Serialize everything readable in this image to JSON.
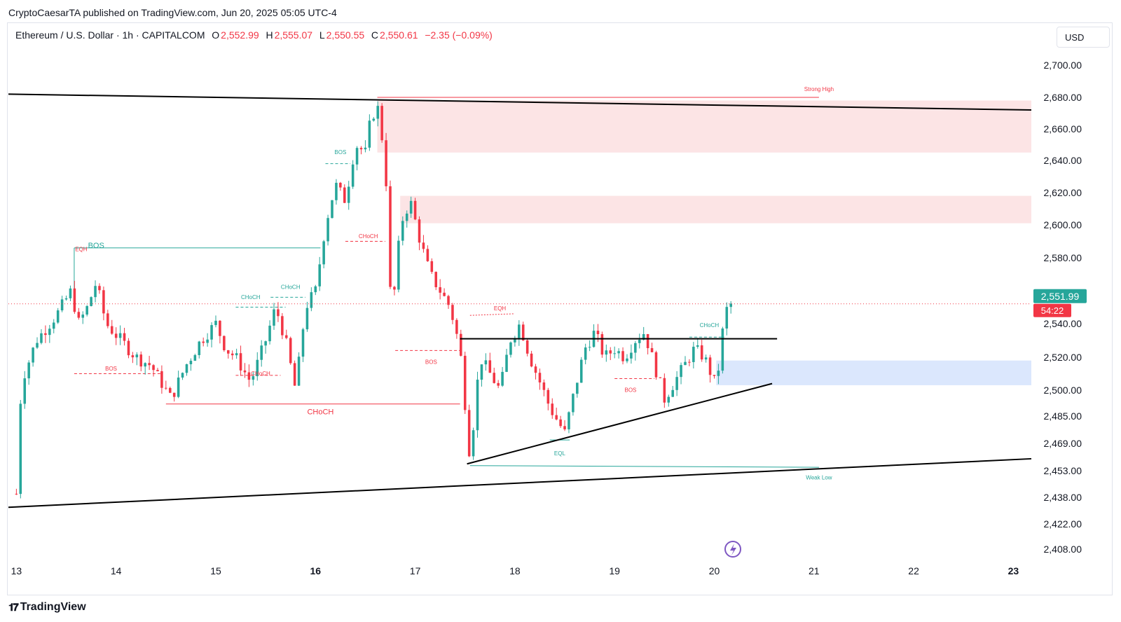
{
  "publisher_line": "CryptoCaesarTA published on TradingView.com, Jun 20, 2025 05:05 UTC-4",
  "symbol": {
    "name": "Ethereum / U.S. Dollar · 1h · CAPITALCOM",
    "o_label": "O",
    "o_value": "2,552.99",
    "h_label": "H",
    "h_value": "2,555.07",
    "l_label": "L",
    "l_value": "2,550.55",
    "c_label": "C",
    "c_value": "2,550.61",
    "change": "−2.35 (−0.09%)"
  },
  "currency": "USD",
  "branding": {
    "logo_text": "TradingView",
    "logo_icon": "tradingview-logo-icon"
  },
  "colors": {
    "bull": "#26a69a",
    "bear": "#f23645",
    "supply_zone": "#fce4e5",
    "demand_zone": "#dbe7fd",
    "trendline": "#000000"
  },
  "chart_data": {
    "type": "candlestick",
    "ylim": [
      2400,
      2712
    ],
    "x_ticks": [
      "13",
      "14",
      "15",
      "16",
      "17",
      "18",
      "19",
      "20",
      "21",
      "22",
      "23"
    ],
    "y_ticks": [
      "2,700.00",
      "2,680.00",
      "2,660.00",
      "2,640.00",
      "2,620.00",
      "2,600.00",
      "2,580.00",
      "2,540.00",
      "2,520.00",
      "2,500.00",
      "2,485.00",
      "2,469.00",
      "2,453.00",
      "2,438.00",
      "2,422.00",
      "2,408.00"
    ],
    "current_price": "2,551.99",
    "countdown": "54:22",
    "price_path": [
      [
        13.0,
        2440
      ],
      [
        13.05,
        2505
      ],
      [
        13.2,
        2530
      ],
      [
        13.4,
        2545
      ],
      [
        13.55,
        2560
      ],
      [
        13.62,
        2540
      ],
      [
        13.7,
        2548
      ],
      [
        13.8,
        2565
      ],
      [
        13.9,
        2540
      ],
      [
        14.05,
        2530
      ],
      [
        14.2,
        2520
      ],
      [
        14.35,
        2515
      ],
      [
        14.45,
        2505
      ],
      [
        14.55,
        2495
      ],
      [
        14.7,
        2515
      ],
      [
        14.85,
        2530
      ],
      [
        15.0,
        2540
      ],
      [
        15.1,
        2525
      ],
      [
        15.2,
        2520
      ],
      [
        15.35,
        2505
      ],
      [
        15.5,
        2530
      ],
      [
        15.6,
        2550
      ],
      [
        15.7,
        2530
      ],
      [
        15.8,
        2500
      ],
      [
        15.9,
        2550
      ],
      [
        16.0,
        2560
      ],
      [
        16.1,
        2600
      ],
      [
        16.2,
        2625
      ],
      [
        16.3,
        2615
      ],
      [
        16.4,
        2650
      ],
      [
        16.5,
        2645
      ],
      [
        16.55,
        2665
      ],
      [
        16.62,
        2675
      ],
      [
        16.7,
        2640
      ],
      [
        16.75,
        2560
      ],
      [
        16.8,
        2560
      ],
      [
        16.85,
        2600
      ],
      [
        16.95,
        2615
      ],
      [
        17.05,
        2590
      ],
      [
        17.15,
        2570
      ],
      [
        17.25,
        2560
      ],
      [
        17.35,
        2550
      ],
      [
        17.45,
        2525
      ],
      [
        17.55,
        2460
      ],
      [
        17.65,
        2520
      ],
      [
        17.75,
        2510
      ],
      [
        17.85,
        2500
      ],
      [
        17.95,
        2530
      ],
      [
        18.05,
        2540
      ],
      [
        18.15,
        2520
      ],
      [
        18.25,
        2505
      ],
      [
        18.35,
        2490
      ],
      [
        18.5,
        2475
      ],
      [
        18.6,
        2500
      ],
      [
        18.7,
        2525
      ],
      [
        18.8,
        2535
      ],
      [
        18.9,
        2520
      ],
      [
        19.0,
        2525
      ],
      [
        19.1,
        2520
      ],
      [
        19.2,
        2530
      ],
      [
        19.3,
        2535
      ],
      [
        19.4,
        2515
      ],
      [
        19.5,
        2495
      ],
      [
        19.6,
        2505
      ],
      [
        19.7,
        2515
      ],
      [
        19.8,
        2525
      ],
      [
        19.9,
        2520
      ],
      [
        20.0,
        2505
      ],
      [
        20.05,
        2515
      ],
      [
        20.1,
        2545
      ],
      [
        20.15,
        2552
      ],
      [
        20.2,
        2551
      ]
    ],
    "supply_zones": [
      {
        "from": 16.62,
        "top": 2678,
        "bottom": 2645
      },
      {
        "from": 16.85,
        "top": 2618,
        "bottom": 2601
      }
    ],
    "demand_zone": {
      "from": 20.02,
      "top": 2518,
      "bottom": 2503
    },
    "trendlines": [
      {
        "name": "upper-channel",
        "x1": 12.92,
        "y1": 2682,
        "x2": 23.18,
        "y2": 2672
      },
      {
        "name": "lower-channel",
        "x1": 12.92,
        "y1": 2432,
        "x2": 23.18,
        "y2": 2460
      },
      {
        "name": "ascending-support",
        "x1": 17.52,
        "y1": 2457,
        "x2": 20.58,
        "y2": 2504
      },
      {
        "name": "range-high",
        "x1": 17.45,
        "y1": 2531,
        "x2": 20.63,
        "y2": 2531
      }
    ],
    "annotations": [
      {
        "text": "BOS",
        "x": 13.8,
        "y": 2586,
        "color": "#26a69a",
        "size": 11
      },
      {
        "text": "EQH",
        "x": 13.65,
        "y": 2584,
        "color": "#f23645",
        "size": 8
      },
      {
        "text": "BOS",
        "x": 13.95,
        "y": 2512,
        "color": "#f23645",
        "size": 8
      },
      {
        "text": "CHoCH",
        "x": 15.35,
        "y": 2555,
        "color": "#26a69a",
        "size": 8
      },
      {
        "text": "CHoCH",
        "x": 15.75,
        "y": 2561,
        "color": "#26a69a",
        "size": 8
      },
      {
        "text": "CHoCH",
        "x": 15.45,
        "y": 2509,
        "color": "#f23645",
        "size": 8
      },
      {
        "text": "CHoCH",
        "x": 16.05,
        "y": 2486,
        "color": "#f23645",
        "size": 11
      },
      {
        "text": "BOS",
        "x": 16.25,
        "y": 2644,
        "color": "#26a69a",
        "size": 8
      },
      {
        "text": "CHoCH",
        "x": 16.53,
        "y": 2592,
        "color": "#f23645",
        "size": 8
      },
      {
        "text": "BOS",
        "x": 17.16,
        "y": 2516,
        "color": "#f23645",
        "size": 8
      },
      {
        "text": "EQH",
        "x": 17.85,
        "y": 2548,
        "color": "#f23645",
        "size": 8
      },
      {
        "text": "Strong High",
        "x": 21.05,
        "y": 2684,
        "color": "#f23645",
        "size": 8
      },
      {
        "text": "EQL",
        "x": 18.45,
        "y": 2462,
        "color": "#26a69a",
        "size": 8
      },
      {
        "text": "Weak Low",
        "x": 21.05,
        "y": 2448,
        "color": "#26a69a",
        "size": 8
      },
      {
        "text": "BOS",
        "x": 19.16,
        "y": 2499,
        "color": "#f23645",
        "size": 8
      },
      {
        "text": "CHoCH",
        "x": 19.95,
        "y": 2538,
        "color": "#26a69a",
        "size": 8
      }
    ]
  }
}
